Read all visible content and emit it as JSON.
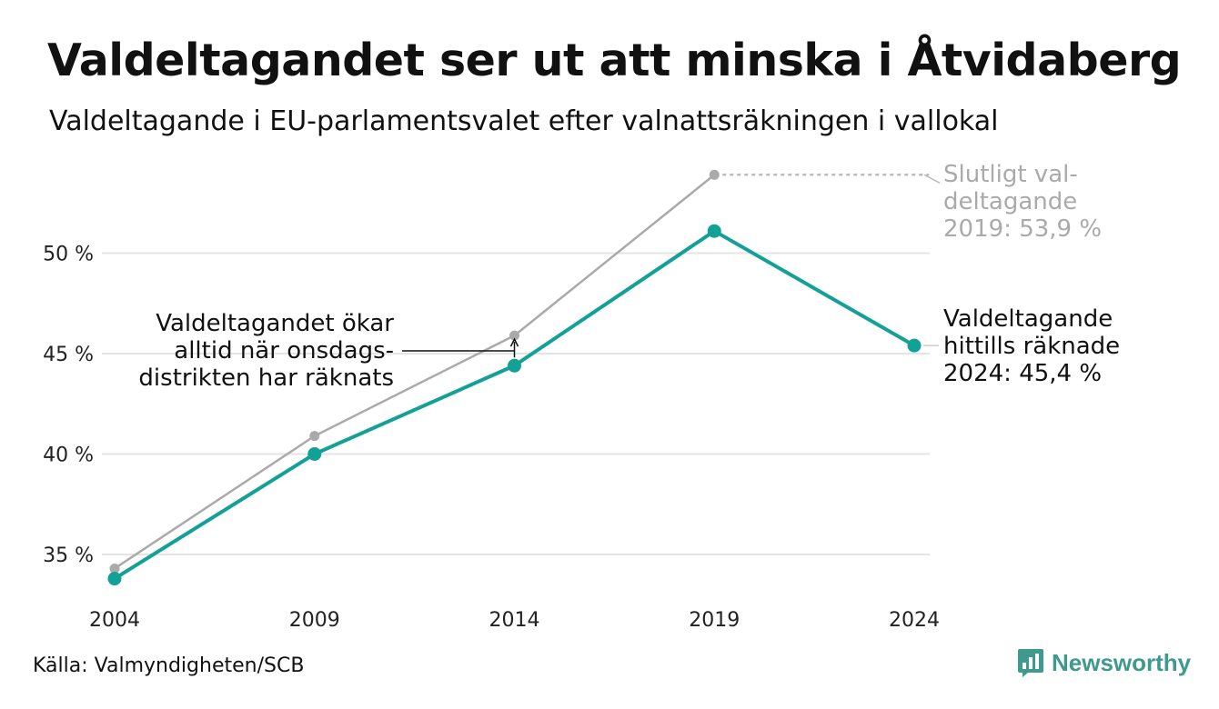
{
  "title": "Valdeltagandet ser ut att minska i Åtvidaberg",
  "subtitle": "Valdeltagande i EU-parlamentsvalet efter valnattsräkningen i vallokal",
  "source": "Källa: Valmyndigheten/SCB",
  "brand": "Newsworthy",
  "colors": {
    "main": "#13a096",
    "final": "#aaaaaa",
    "grid": "#e4e4e4"
  },
  "chart_data": {
    "type": "line",
    "categories": [
      "2004",
      "2009",
      "2014",
      "2019",
      "2024"
    ],
    "y_ticks": [
      "35 %",
      "40 %",
      "45 %",
      "50 %"
    ],
    "ylim": [
      33.5,
      55
    ],
    "grid": true,
    "series": [
      {
        "key": "final",
        "values": [
          34.3,
          40.9,
          45.9,
          53.9,
          null
        ]
      },
      {
        "key": "night",
        "values": [
          33.8,
          40.0,
          44.4,
          51.1,
          45.4
        ]
      }
    ],
    "annotations": {
      "final_2019": [
        "Slutligt val-",
        "deltagande",
        "2019: 53,9 %"
      ],
      "night_2024": [
        "Valdeltagande",
        "hittills räknade",
        "2024: 45,4 %"
      ],
      "increase_note": [
        "Valdeltagandet ökar",
        "alltid när onsdags-",
        "distrikten har räknats"
      ]
    }
  }
}
